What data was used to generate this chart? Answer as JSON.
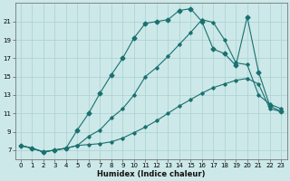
{
  "title": "",
  "xlabel": "Humidex (Indice chaleur)",
  "xlim": [
    -0.5,
    23.5
  ],
  "ylim": [
    6.0,
    23.0
  ],
  "xticks": [
    0,
    1,
    2,
    3,
    4,
    5,
    6,
    7,
    8,
    9,
    10,
    11,
    12,
    13,
    14,
    15,
    16,
    17,
    18,
    19,
    20,
    21,
    22,
    23
  ],
  "yticks": [
    7,
    9,
    11,
    13,
    15,
    17,
    19,
    21
  ],
  "background_color": "#cce8e8",
  "grid_color": "#aad0d0",
  "line_color": "#1a7070",
  "line1_x": [
    0,
    1,
    2,
    3,
    4,
    5,
    6,
    7,
    8,
    9,
    10,
    11,
    12,
    13,
    14,
    15,
    16,
    17,
    18,
    19,
    20,
    21,
    22,
    23
  ],
  "line1_y": [
    7.5,
    7.2,
    6.8,
    7.0,
    7.2,
    7.5,
    7.6,
    7.7,
    7.9,
    8.3,
    8.9,
    9.5,
    10.2,
    11.0,
    11.8,
    12.5,
    13.2,
    13.8,
    14.2,
    14.6,
    14.8,
    14.2,
    11.5,
    11.2
  ],
  "line2_x": [
    0,
    1,
    2,
    3,
    4,
    5,
    6,
    7,
    8,
    9,
    10,
    11,
    12,
    13,
    14,
    15,
    16,
    17,
    18,
    19,
    20,
    21,
    22,
    23
  ],
  "line2_y": [
    7.5,
    7.2,
    6.8,
    7.0,
    7.2,
    7.5,
    8.5,
    9.2,
    10.5,
    11.5,
    13.0,
    15.0,
    16.0,
    17.2,
    18.5,
    19.8,
    21.2,
    20.9,
    19.0,
    16.5,
    16.3,
    13.0,
    12.0,
    11.5
  ],
  "line3_x": [
    0,
    1,
    2,
    3,
    4,
    5,
    6,
    7,
    8,
    9,
    10,
    11,
    12,
    13,
    14,
    15,
    16,
    17,
    18,
    19,
    20,
    21,
    22,
    23
  ],
  "line3_y": [
    7.5,
    7.2,
    6.8,
    7.0,
    7.2,
    9.2,
    11.0,
    13.2,
    15.2,
    17.0,
    19.2,
    20.8,
    21.0,
    21.2,
    22.2,
    22.4,
    21.0,
    18.0,
    17.5,
    16.2,
    21.5,
    15.5,
    11.8,
    11.2
  ]
}
